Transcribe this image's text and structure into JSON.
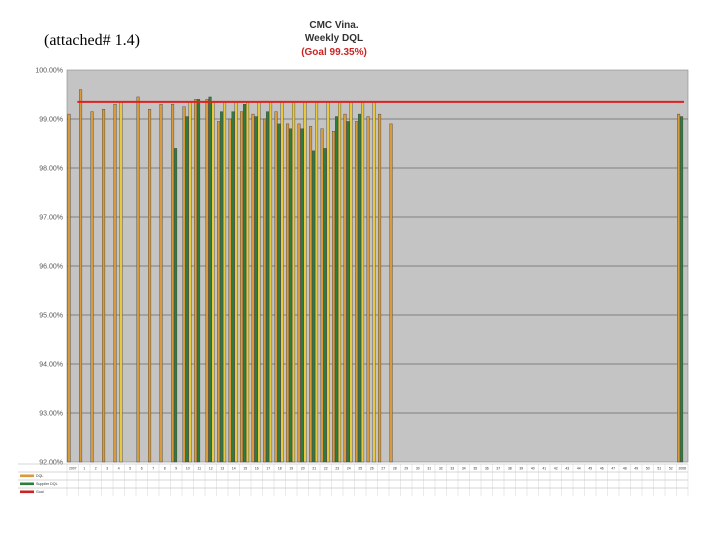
{
  "caption": "(attached# 1.4)",
  "chart_data": {
    "type": "bar",
    "title": "CMC Vina.",
    "subtitle": "Weekly DQL",
    "goal_label": "(Goal 99.35%)",
    "ylim": [
      92.0,
      100.0
    ],
    "yticks": [
      "92.00%",
      "93.00%",
      "94.00%",
      "95.00%",
      "96.00%",
      "97.00%",
      "98.00%",
      "99.00%",
      "100.00%"
    ],
    "goal_value": 99.35,
    "categories": [
      "2007",
      "1",
      "2",
      "3",
      "4",
      "5",
      "6",
      "7",
      "8",
      "9",
      "10",
      "11",
      "12",
      "13",
      "14",
      "15",
      "16",
      "17",
      "18",
      "19",
      "20",
      "21",
      "22",
      "23",
      "24",
      "25",
      "26",
      "27",
      "28",
      "29",
      "30",
      "31",
      "32",
      "33",
      "34",
      "35",
      "36",
      "37",
      "38",
      "39",
      "40",
      "41",
      "42",
      "43",
      "44",
      "45",
      "46",
      "47",
      "48",
      "49",
      "50",
      "51",
      "52",
      "2008"
    ],
    "series": [
      {
        "name": "DQL",
        "color": "#d89a3a",
        "values": [
          99.1,
          99.6,
          99.15,
          99.2,
          99.3,
          null,
          99.45,
          99.2,
          99.3,
          99.3,
          99.25,
          99.4,
          99.4,
          98.95,
          99.0,
          99.15,
          99.1,
          99.0,
          99.15,
          98.9,
          98.9,
          98.85,
          98.8,
          98.75,
          99.1,
          98.95,
          99.05,
          99.1,
          98.9,
          null,
          null,
          null,
          null,
          null,
          null,
          null,
          null,
          null,
          null,
          null,
          null,
          null,
          null,
          null,
          null,
          null,
          null,
          null,
          null,
          null,
          null,
          null,
          null,
          99.1
        ]
      },
      {
        "name": "Supplier",
        "color": "#2e7d3a",
        "values": [
          null,
          null,
          null,
          null,
          null,
          null,
          null,
          null,
          null,
          98.4,
          99.05,
          99.4,
          99.45,
          99.15,
          99.15,
          99.3,
          99.05,
          99.15,
          98.9,
          98.8,
          98.8,
          98.35,
          98.4,
          99.05,
          98.95,
          99.1,
          null,
          null,
          null,
          null,
          null,
          null,
          null,
          null,
          null,
          null,
          null,
          null,
          null,
          null,
          null,
          null,
          null,
          null,
          null,
          null,
          null,
          null,
          null,
          null,
          null,
          null,
          null,
          99.05
        ]
      },
      {
        "name": "Goal",
        "color": "#e8c840",
        "values": [
          null,
          null,
          null,
          null,
          99.35,
          null,
          null,
          null,
          null,
          null,
          99.35,
          null,
          99.35,
          99.35,
          99.35,
          99.35,
          99.35,
          99.35,
          99.35,
          99.35,
          99.35,
          99.35,
          99.35,
          99.35,
          99.35,
          99.35,
          99.35,
          null,
          null,
          null,
          null,
          null,
          null,
          null,
          null,
          null,
          null,
          null,
          null,
          null,
          null,
          null,
          null,
          null,
          null,
          null,
          null,
          null,
          null,
          null,
          null,
          null,
          null,
          null
        ]
      }
    ],
    "table_rows": [
      {
        "label": "DQL",
        "color": "#d89a3a"
      },
      {
        "label": "Supplier DQL",
        "color": "#2e7d3a"
      },
      {
        "label": "Goal",
        "color": "#cc2222"
      }
    ],
    "grid": true,
    "colors": {
      "plot_bg": "#c4c4c4",
      "goal_line": "#e02020",
      "gridline": "#6a6a6a"
    }
  }
}
